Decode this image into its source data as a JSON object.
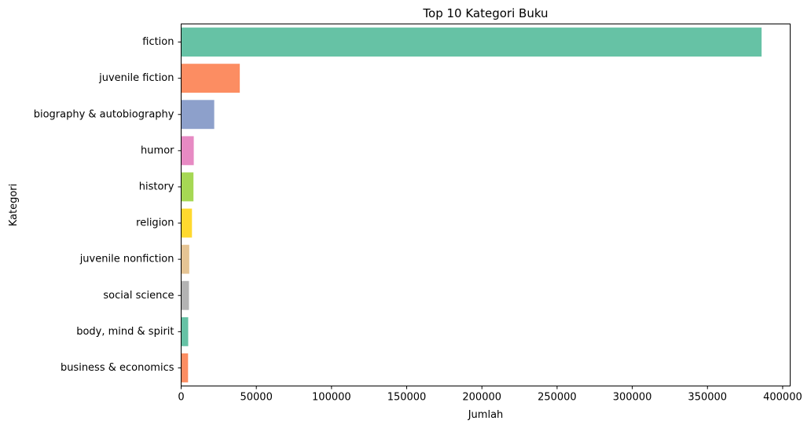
{
  "chart_data": {
    "type": "bar",
    "orientation": "horizontal",
    "title": "Top 10 Kategori Buku",
    "xlabel": "Jumlah",
    "ylabel": "Kategori",
    "categories": [
      "fiction",
      "juvenile fiction",
      "biography & autobiography",
      "humor",
      "history",
      "religion",
      "juvenile nonfiction",
      "social science",
      "body, mind & spirit",
      "business & economics"
    ],
    "values": [
      386000,
      39000,
      22000,
      8400,
      8200,
      7200,
      5400,
      5200,
      4700,
      4600
    ],
    "colors": [
      "#66c2a5",
      "#fc8d62",
      "#8da0cb",
      "#e78ac3",
      "#a6d854",
      "#ffd92f",
      "#e5c494",
      "#b3b3b3",
      "#66c2a5",
      "#fc8d62"
    ],
    "xlim": [
      0,
      405000
    ],
    "xticks": [
      0,
      50000,
      100000,
      150000,
      200000,
      250000,
      300000,
      350000,
      400000
    ],
    "xtick_labels": [
      "0",
      "50000",
      "100000",
      "150000",
      "200000",
      "250000",
      "300000",
      "350000",
      "400000"
    ],
    "grid": false,
    "legend": "none"
  }
}
